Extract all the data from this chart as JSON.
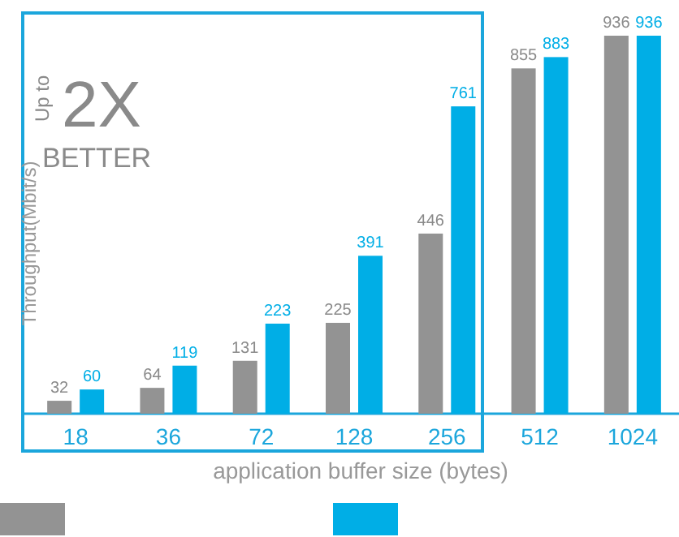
{
  "chart_data": {
    "type": "bar",
    "ylabel": "Throughput(Mbit/s)",
    "xlabel": "application buffer size (bytes)",
    "categories": [
      "18",
      "36",
      "72",
      "128",
      "256",
      "512",
      "1024"
    ],
    "series": [
      {
        "color": "#939393",
        "values": [
          32,
          64,
          131,
          225,
          446,
          855,
          936
        ]
      },
      {
        "color": "#00aee6",
        "values": [
          60,
          119,
          223,
          391,
          761,
          883,
          936
        ]
      }
    ],
    "data_labels": true,
    "annotations": [
      "Up to",
      "2X",
      "BETTER"
    ]
  }
}
